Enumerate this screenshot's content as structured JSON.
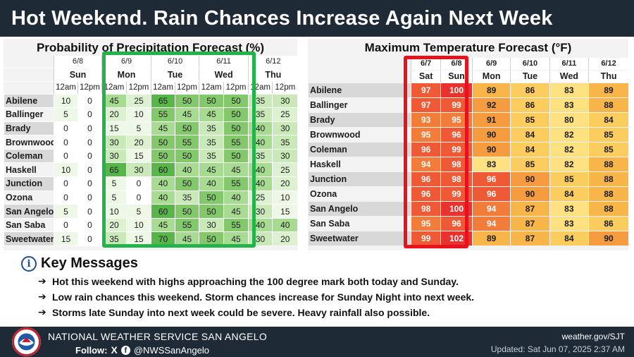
{
  "title": "Hot Weekend. Rain Chances Increase Again Next Week",
  "colors": {
    "header_bg": "#1e2a36",
    "green_highlight": "#24b24b",
    "red_highlight": "#e8121c"
  },
  "popf": {
    "title": "Probability of Precipitation Forecast (%)",
    "dates": [
      "6/8",
      "6/9",
      "6/10",
      "6/11",
      "6/12"
    ],
    "days": [
      "Sun",
      "Mon",
      "Tue",
      "Wed",
      "Thu"
    ],
    "times": [
      "12am",
      "12pm",
      "12am",
      "12pm",
      "12am",
      "12pm",
      "12am",
      "12pm",
      "12am",
      "12pm"
    ],
    "rows": [
      {
        "city": "Abilene",
        "values": [
          "10",
          "0",
          "45",
          "25",
          "65",
          "50",
          "50",
          "50",
          "35",
          "30"
        ]
      },
      {
        "city": "Ballinger",
        "values": [
          "5",
          "0",
          "20",
          "10",
          "55",
          "45",
          "45",
          "50",
          "35",
          "25"
        ]
      },
      {
        "city": "Brady",
        "values": [
          "0",
          "0",
          "15",
          "5",
          "45",
          "50",
          "35",
          "50",
          "40",
          "30"
        ]
      },
      {
        "city": "Brownwood",
        "values": [
          "0",
          "0",
          "30",
          "20",
          "50",
          "55",
          "35",
          "55",
          "40",
          "35"
        ]
      },
      {
        "city": "Coleman",
        "values": [
          "0",
          "0",
          "30",
          "15",
          "50",
          "50",
          "35",
          "50",
          "35",
          "30"
        ]
      },
      {
        "city": "Haskell",
        "values": [
          "10",
          "0",
          "65",
          "30",
          "60",
          "40",
          "45",
          "45",
          "40",
          "25"
        ]
      },
      {
        "city": "Junction",
        "values": [
          "0",
          "0",
          "5",
          "0",
          "40",
          "50",
          "40",
          "55",
          "40",
          "20"
        ]
      },
      {
        "city": "Ozona",
        "values": [
          "0",
          "0",
          "5",
          "0",
          "40",
          "35",
          "50",
          "40",
          "25",
          "10"
        ]
      },
      {
        "city": "San Angelo",
        "values": [
          "5",
          "0",
          "10",
          "5",
          "60",
          "50",
          "50",
          "45",
          "30",
          "15"
        ]
      },
      {
        "city": "San Saba",
        "values": [
          "0",
          "0",
          "20",
          "10",
          "45",
          "55",
          "30",
          "55",
          "40",
          "40"
        ]
      },
      {
        "city": "Sweetwater",
        "values": [
          "15",
          "0",
          "35",
          "15",
          "70",
          "45",
          "50",
          "45",
          "30",
          "20"
        ]
      }
    ]
  },
  "maxt": {
    "title": "Maximum Temperature Forecast (°F)",
    "dates": [
      "6/7",
      "6/8",
      "6/9",
      "6/10",
      "6/11",
      "6/12"
    ],
    "days": [
      "Sat",
      "Sun",
      "Mon",
      "Tue",
      "Wed",
      "Thu"
    ],
    "rows": [
      {
        "city": "Abilene",
        "values": [
          "97",
          "100",
          "89",
          "86",
          "83",
          "89"
        ]
      },
      {
        "city": "Ballinger",
        "values": [
          "97",
          "99",
          "92",
          "86",
          "83",
          "88"
        ]
      },
      {
        "city": "Brady",
        "values": [
          "93",
          "95",
          "91",
          "85",
          "80",
          "84"
        ]
      },
      {
        "city": "Brownwood",
        "values": [
          "95",
          "96",
          "90",
          "84",
          "82",
          "85"
        ]
      },
      {
        "city": "Coleman",
        "values": [
          "96",
          "99",
          "90",
          "84",
          "82",
          "85"
        ]
      },
      {
        "city": "Haskell",
        "values": [
          "94",
          "98",
          "83",
          "85",
          "82",
          "88"
        ]
      },
      {
        "city": "Junction",
        "values": [
          "96",
          "98",
          "96",
          "90",
          "85",
          "88"
        ]
      },
      {
        "city": "Ozona",
        "values": [
          "96",
          "99",
          "96",
          "90",
          "84",
          "88"
        ]
      },
      {
        "city": "San Angelo",
        "values": [
          "98",
          "100",
          "94",
          "87",
          "83",
          "88"
        ]
      },
      {
        "city": "San Saba",
        "values": [
          "95",
          "96",
          "94",
          "87",
          "83",
          "86"
        ]
      },
      {
        "city": "Sweetwater",
        "values": [
          "99",
          "102",
          "89",
          "87",
          "84",
          "90"
        ]
      }
    ]
  },
  "key_messages": {
    "heading": "Key Messages",
    "icon": "info-icon",
    "items": [
      "Hot this weekend with highs approaching the 100 degree mark both today and Sunday.",
      "Low rain chances this weekend. Storm chances increase for Sunday Night into next week.",
      "Storms late Sunday into next week could be severe. Heavy rainfall also possible."
    ]
  },
  "footer": {
    "org": "NATIONAL WEATHER SERVICE SAN ANGELO",
    "follow_label": "Follow:",
    "x_icon": "X",
    "fb_icon": "f",
    "handle": "@NWSSanAngelo",
    "site": "weather.gov/SJT",
    "updated": "Updated: Sat Jun 07, 2025 2:37 AM"
  }
}
